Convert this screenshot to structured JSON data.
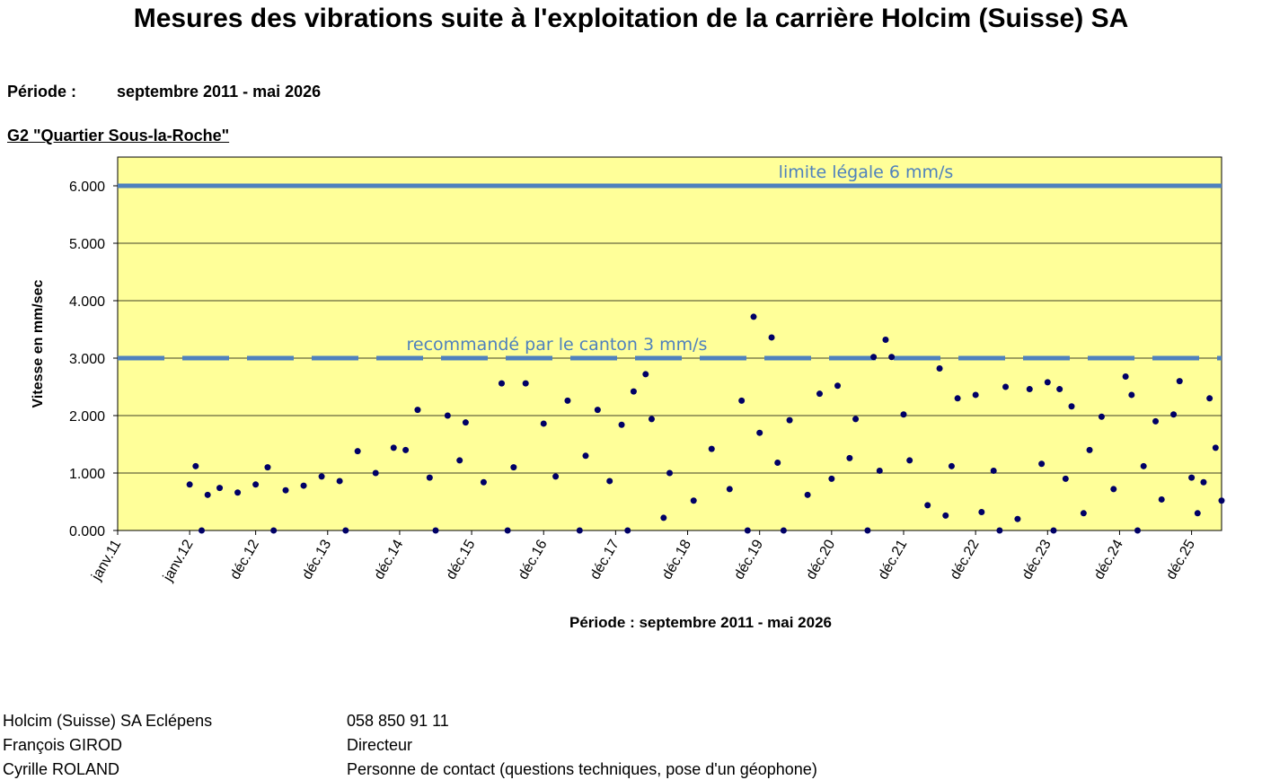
{
  "header": {
    "title": "Mesures des vibrations suite à l'exploitation de la carrière Holcim (Suisse) SA",
    "period_label": "Période :",
    "period_value": "septembre 2011 - mai 2026",
    "station": "G2 \"Quartier Sous-la-Roche\""
  },
  "chart_data": {
    "type": "scatter",
    "title": "",
    "xlabel": "Période : septembre 2011 - mai 2026",
    "ylabel": "Vitesse en mm/sec",
    "ylim": [
      0,
      6.5
    ],
    "yticks": [
      "0.000",
      "1.000",
      "2.000",
      "3.000",
      "4.000",
      "5.000",
      "6.000"
    ],
    "ytick_values": [
      0,
      1,
      2,
      3,
      4,
      5,
      6
    ],
    "xlim": [
      "2011-01",
      "2026-05"
    ],
    "xticks": [
      "janv.11",
      "janv.12",
      "déc.12",
      "déc.13",
      "déc.14",
      "déc.15",
      "déc.16",
      "déc.17",
      "déc.18",
      "déc.19",
      "déc.20",
      "déc.21",
      "déc.22",
      "déc.23",
      "déc.24",
      "déc.25"
    ],
    "xtick_dates": [
      "2011-01",
      "2012-01",
      "2012-12",
      "2013-12",
      "2014-12",
      "2015-12",
      "2016-12",
      "2017-12",
      "2018-12",
      "2019-12",
      "2020-12",
      "2021-12",
      "2022-12",
      "2023-12",
      "2024-12",
      "2025-12"
    ],
    "grid": true,
    "background": "#ffff99",
    "point_color": "#000066",
    "reference_lines": [
      {
        "label": "limite légale 6 mm/s",
        "y": 6,
        "style": "solid",
        "color": "#4f81bd"
      },
      {
        "label": "recommandé par le canton 3 mm/s",
        "y": 3,
        "style": "dashed",
        "color": "#4f81bd"
      }
    ],
    "series": [
      {
        "points": [
          [
            "2019-11",
            3.72
          ],
          [
            "2020-02",
            3.36
          ],
          [
            "2021-09",
            3.32
          ],
          [
            "2021-07",
            3.02
          ],
          [
            "2021-10",
            3.02
          ],
          [
            "2018-05",
            2.72
          ],
          [
            "2016-05",
            2.56
          ],
          [
            "2016-09",
            2.56
          ],
          [
            "2018-03",
            2.42
          ],
          [
            "2015-03",
            2.1
          ],
          [
            "2015-08",
            2.0
          ],
          [
            "2015-11",
            1.88
          ],
          [
            "2016-12",
            1.86
          ],
          [
            "2017-04",
            2.26
          ],
          [
            "2017-09",
            2.1
          ],
          [
            "2018-01",
            1.84
          ],
          [
            "2018-06",
            1.94
          ],
          [
            "2019-09",
            2.26
          ],
          [
            "2020-05",
            1.92
          ],
          [
            "2020-10",
            2.38
          ],
          [
            "2021-01",
            2.52
          ],
          [
            "2021-04",
            1.94
          ],
          [
            "2021-12",
            2.02
          ],
          [
            "2022-06",
            2.82
          ],
          [
            "2022-09",
            2.3
          ],
          [
            "2022-12",
            2.36
          ],
          [
            "2023-05",
            2.5
          ],
          [
            "2023-09",
            2.46
          ],
          [
            "2023-12",
            2.58
          ],
          [
            "2024-02",
            2.46
          ],
          [
            "2024-04",
            2.16
          ],
          [
            "2024-09",
            1.98
          ],
          [
            "2025-01",
            2.68
          ],
          [
            "2025-02",
            2.36
          ],
          [
            "2025-06",
            1.9
          ],
          [
            "2025-09",
            2.02
          ],
          [
            "2025-10",
            2.6
          ],
          [
            "2026-03",
            2.3
          ],
          [
            "2026-04",
            1.44
          ],
          [
            "2026-05",
            0.52
          ],
          [
            "2012-01",
            0.8
          ],
          [
            "2012-02",
            1.12
          ],
          [
            "2012-04",
            0.62
          ],
          [
            "2012-06",
            0.74
          ],
          [
            "2012-09",
            0.66
          ],
          [
            "2012-12",
            0.8
          ],
          [
            "2013-02",
            1.1
          ],
          [
            "2013-05",
            0.7
          ],
          [
            "2013-08",
            0.78
          ],
          [
            "2013-11",
            0.94
          ],
          [
            "2014-02",
            0.86
          ],
          [
            "2014-05",
            1.38
          ],
          [
            "2014-08",
            1.0
          ],
          [
            "2014-11",
            1.44
          ],
          [
            "2015-01",
            1.4
          ],
          [
            "2015-05",
            0.92
          ],
          [
            "2015-10",
            1.22
          ],
          [
            "2016-02",
            0.84
          ],
          [
            "2016-07",
            1.1
          ],
          [
            "2017-02",
            0.94
          ],
          [
            "2017-07",
            1.3
          ],
          [
            "2017-11",
            0.86
          ],
          [
            "2018-09",
            1.0
          ],
          [
            "2019-01",
            0.52
          ],
          [
            "2019-04",
            1.42
          ],
          [
            "2019-07",
            0.72
          ],
          [
            "2019-12",
            1.7
          ],
          [
            "2020-03",
            1.18
          ],
          [
            "2020-08",
            0.62
          ],
          [
            "2020-12",
            0.9
          ],
          [
            "2021-03",
            1.26
          ],
          [
            "2021-08",
            1.04
          ],
          [
            "2022-01",
            1.22
          ],
          [
            "2022-04",
            0.44
          ],
          [
            "2022-08",
            1.12
          ],
          [
            "2023-01",
            0.32
          ],
          [
            "2023-03",
            1.04
          ],
          [
            "2023-07",
            0.2
          ],
          [
            "2023-11",
            1.16
          ],
          [
            "2024-03",
            0.9
          ],
          [
            "2024-07",
            1.4
          ],
          [
            "2024-11",
            0.72
          ],
          [
            "2025-04",
            1.12
          ],
          [
            "2025-07",
            0.54
          ],
          [
            "2025-12",
            0.92
          ],
          [
            "2026-01",
            0.3
          ],
          [
            "2026-02",
            0.84
          ],
          [
            "2018-08",
            0.22
          ],
          [
            "2022-07",
            0.26
          ],
          [
            "2024-06",
            0.3
          ],
          [
            "2012-03",
            0.0
          ],
          [
            "2013-03",
            0.0
          ],
          [
            "2014-03",
            0.0
          ],
          [
            "2015-06",
            0.0
          ],
          [
            "2016-06",
            0.0
          ],
          [
            "2017-06",
            0.0
          ],
          [
            "2018-02",
            0.0
          ],
          [
            "2019-10",
            0.0
          ],
          [
            "2020-04",
            0.0
          ],
          [
            "2021-06",
            0.0
          ],
          [
            "2023-04",
            0.0
          ],
          [
            "2024-01",
            0.0
          ],
          [
            "2025-03",
            0.0
          ]
        ]
      }
    ]
  },
  "footer": [
    {
      "name": "Holcim (Suisse) SA Eclépens",
      "info": "058 850 91 11"
    },
    {
      "name": "François GIROD",
      "info": "Directeur"
    },
    {
      "name": "Cyrille ROLAND",
      "info": "Personne de contact (questions techniques, pose d'un géophone)"
    }
  ]
}
